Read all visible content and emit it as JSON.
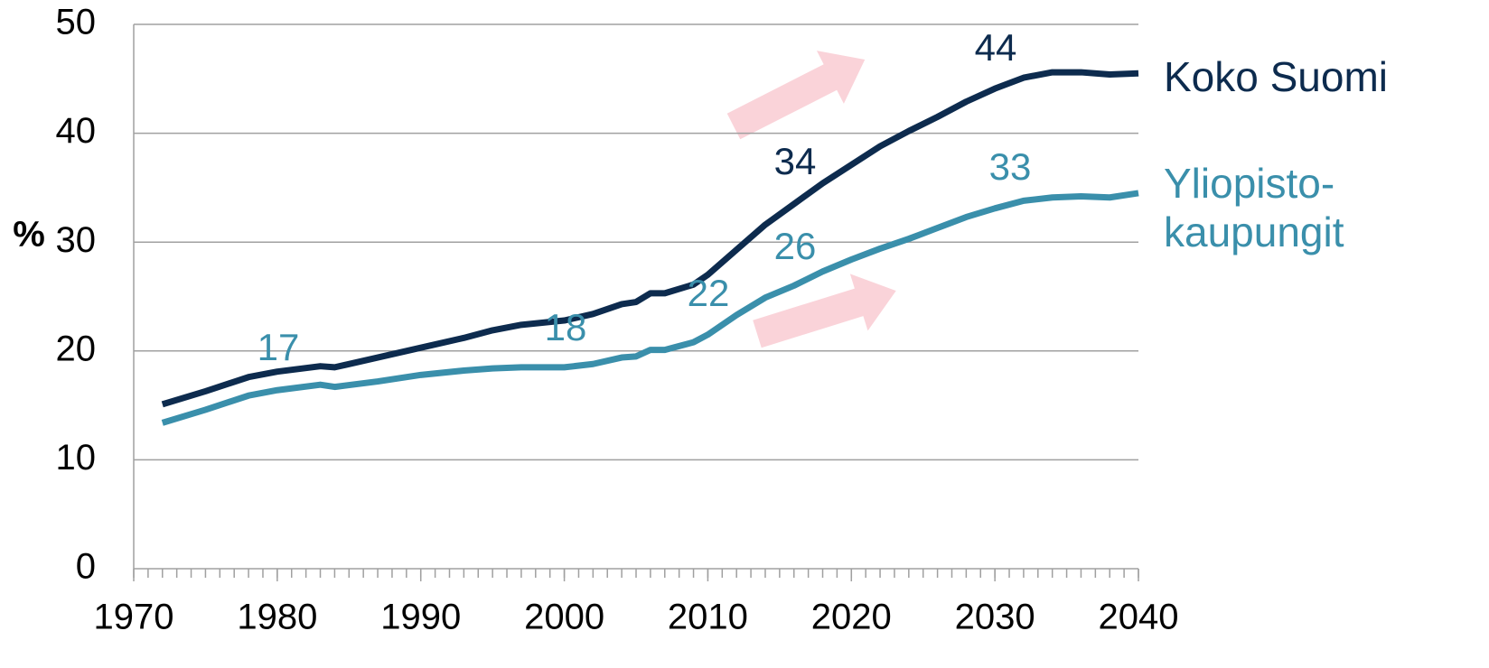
{
  "chart_data": {
    "type": "line",
    "y_label": "%",
    "x": [
      1972,
      1975,
      1978,
      1980,
      1983,
      1984,
      1987,
      1990,
      1993,
      1995,
      1997,
      2000,
      2002,
      2004,
      2005,
      2006,
      2007,
      2009,
      2010,
      2012,
      2014,
      2016,
      2018,
      2020,
      2022,
      2024,
      2026,
      2028,
      2030,
      2032,
      2034,
      2036,
      2038,
      2040
    ],
    "series": [
      {
        "name": "Koko Suomi",
        "color": "#0d2b4e",
        "values": [
          15.1,
          16.3,
          17.6,
          18.1,
          18.6,
          18.5,
          19.4,
          20.3,
          21.2,
          21.9,
          22.4,
          22.8,
          23.4,
          24.3,
          24.5,
          25.3,
          25.3,
          26.1,
          27.0,
          29.3,
          31.6,
          33.5,
          35.4,
          37.1,
          38.8,
          40.2,
          41.5,
          42.9,
          44.1,
          45.1,
          45.6,
          45.6,
          45.4,
          45.5
        ]
      },
      {
        "name": "Yliopisto-kaupungit",
        "color": "#3a8fab",
        "values": [
          13.4,
          14.6,
          15.9,
          16.4,
          16.9,
          16.7,
          17.2,
          17.8,
          18.2,
          18.4,
          18.5,
          18.5,
          18.8,
          19.4,
          19.5,
          20.1,
          20.1,
          20.8,
          21.5,
          23.3,
          24.9,
          26.0,
          27.3,
          28.4,
          29.4,
          30.3,
          31.3,
          32.3,
          33.1,
          33.8,
          34.1,
          34.2,
          34.1,
          34.5
        ]
      }
    ],
    "annotations": [
      {
        "text": "17",
        "color": "#3a8fab"
      },
      {
        "text": "18",
        "color": "#3a8fab"
      },
      {
        "text": "22",
        "color": "#3a8fab"
      },
      {
        "text": "26",
        "color": "#3a8fab"
      },
      {
        "text": "33",
        "color": "#3a8fab"
      },
      {
        "text": "34",
        "color": "#0d2b4e"
      },
      {
        "text": "44",
        "color": "#0d2b4e"
      }
    ],
    "xlim": [
      1970,
      2040
    ],
    "xticks": [
      1970,
      1980,
      1990,
      2000,
      2010,
      2020,
      2030,
      2040
    ],
    "ylim": [
      0,
      50
    ],
    "yticks": [
      0,
      10,
      20,
      30,
      40,
      50
    ],
    "grid": true
  }
}
